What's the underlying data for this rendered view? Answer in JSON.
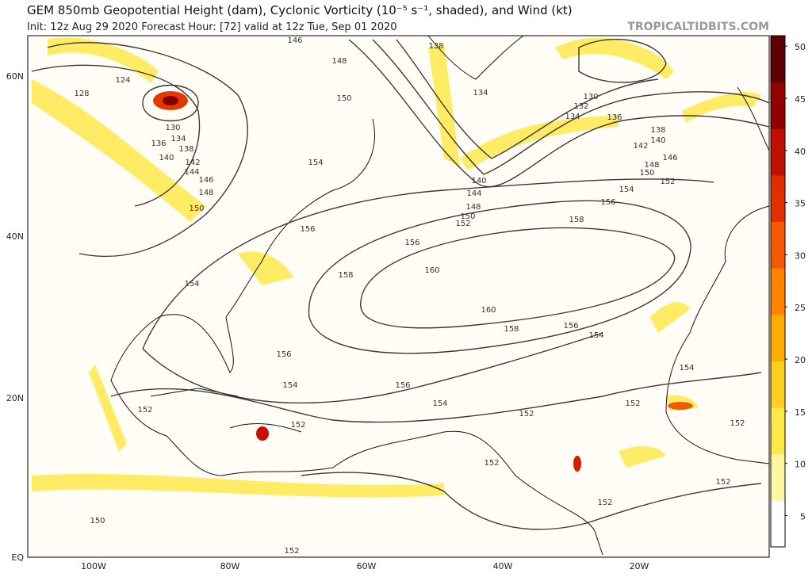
{
  "header": {
    "title": "GEM 850mb Geopotential Height (dam), Cyclonic Vorticity (10⁻⁵ s⁻¹, shaded), and Wind (kt)",
    "subtitle": "Init: 12z Aug 29 2020   Forecast Hour: [72]   valid at 12z Tue, Sep 01 2020",
    "site": "TROPICALTIDBITS.COM"
  },
  "map": {
    "latitude_labels": [
      "60N",
      "40N",
      "20N",
      "EQ"
    ],
    "longitude_labels": [
      "100W",
      "80W",
      "60W",
      "40W",
      "20W"
    ],
    "height_contour_labels": [
      124,
      128,
      130,
      134,
      136,
      138,
      140,
      142,
      144,
      146,
      148,
      150,
      154,
      146,
      148,
      150,
      154,
      156,
      158,
      156,
      160,
      160,
      158,
      156,
      154,
      156,
      154,
      156,
      154,
      152,
      152,
      152,
      152,
      152,
      152,
      152,
      152,
      150,
      152,
      134,
      130,
      132,
      134,
      136,
      138,
      140,
      142,
      146,
      148,
      150,
      152,
      154,
      156,
      158,
      140,
      144,
      148,
      150,
      152,
      138,
      154
    ]
  },
  "colorbar": {
    "range": [
      2,
      51
    ],
    "ticks": [
      5,
      10,
      15,
      20,
      25,
      30,
      35,
      40,
      45,
      50
    ],
    "colors": [
      "#ffffff",
      "#fff7a0",
      "#ffe84a",
      "#ffcf1f",
      "#ffae00",
      "#ff8400",
      "#f55a00",
      "#e02e00",
      "#c01000",
      "#930000",
      "#5c0000"
    ]
  }
}
